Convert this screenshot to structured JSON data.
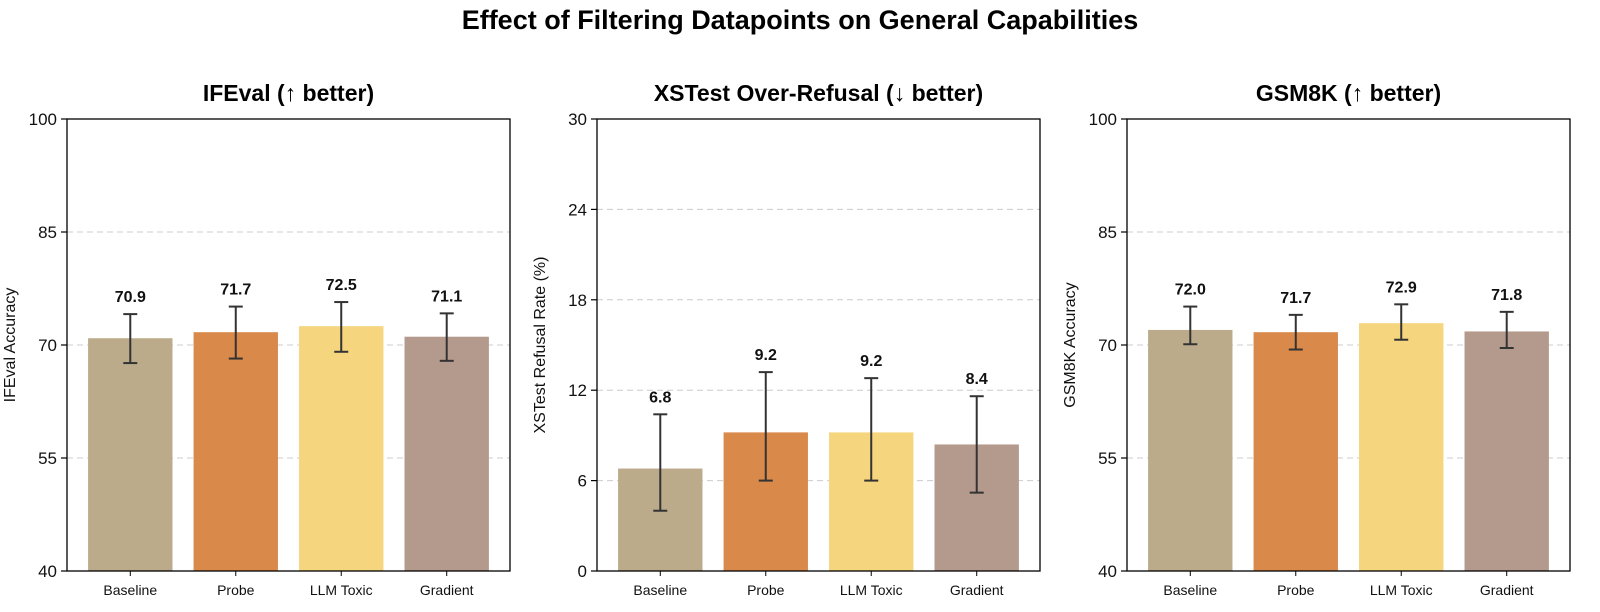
{
  "title": "Effect of Filtering Datapoints on General Capabilities",
  "colors": {
    "Baseline": "#bbab8b",
    "Probe": "#d9894a",
    "LLM Toxic": "#f5d57e",
    "Gradient": "#b49a8c",
    "error_bar": "#333333",
    "grid": "#cccccc"
  },
  "chart_data": [
    {
      "type": "bar",
      "title": "IFEval (↑ better)",
      "ylabel": "IFEval Accuracy",
      "xlabel": "",
      "ylim": [
        40,
        100
      ],
      "yticks": [
        40,
        55,
        70,
        85,
        100
      ],
      "grid": "y-dashed",
      "categories": [
        "Baseline",
        "Probe",
        "LLM Toxic",
        "Gradient"
      ],
      "values": [
        70.9,
        71.7,
        72.5,
        71.1
      ],
      "value_labels": [
        "70.9",
        "71.7",
        "72.5",
        "71.1"
      ],
      "error_low": [
        67.6,
        68.2,
        69.1,
        67.9
      ],
      "error_high": [
        74.1,
        75.1,
        75.7,
        74.2
      ]
    },
    {
      "type": "bar",
      "title": "XSTest Over-Refusal (↓ better)",
      "ylabel": "XSTest Refusal Rate (%)",
      "xlabel": "",
      "ylim": [
        0,
        30
      ],
      "yticks": [
        0,
        6,
        12,
        18,
        24,
        30
      ],
      "grid": "y-dashed",
      "categories": [
        "Baseline",
        "Probe",
        "LLM Toxic",
        "Gradient"
      ],
      "values": [
        6.8,
        9.2,
        9.2,
        8.4
      ],
      "value_labels": [
        "6.8",
        "9.2",
        "9.2",
        "8.4"
      ],
      "error_low": [
        4.0,
        6.0,
        6.0,
        5.2
      ],
      "error_high": [
        10.4,
        13.2,
        12.8,
        11.6
      ]
    },
    {
      "type": "bar",
      "title": "GSM8K (↑ better)",
      "ylabel": "GSM8K Accuracy",
      "xlabel": "",
      "ylim": [
        40,
        100
      ],
      "yticks": [
        40,
        55,
        70,
        85,
        100
      ],
      "grid": "y-dashed",
      "categories": [
        "Baseline",
        "Probe",
        "LLM Toxic",
        "Gradient"
      ],
      "values": [
        72.0,
        71.7,
        72.9,
        71.8
      ],
      "value_labels": [
        "72.0",
        "71.7",
        "72.9",
        "71.8"
      ],
      "error_low": [
        70.1,
        69.4,
        70.7,
        69.6
      ],
      "error_high": [
        75.1,
        74.0,
        75.4,
        74.4
      ]
    }
  ]
}
